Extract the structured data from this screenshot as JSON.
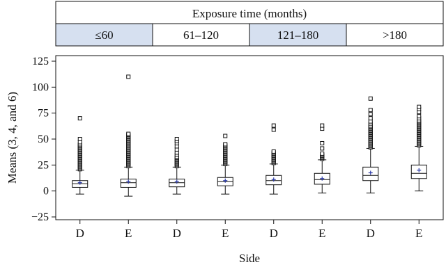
{
  "chart_data": {
    "type": "boxplot",
    "header": {
      "title": "Exposure time (months)",
      "groups": [
        {
          "label": "≤60",
          "highlight": true
        },
        {
          "label": "61–120",
          "highlight": false
        },
        {
          "label": "121–180",
          "highlight": true
        },
        {
          "label": ">180",
          "highlight": false
        }
      ]
    },
    "xlabel": "Side",
    "ylabel": "Means (3, 4, and 6)",
    "ylim": [
      -25,
      125
    ],
    "yticks": [
      -25,
      0,
      25,
      50,
      75,
      100,
      125
    ],
    "colors": {
      "header_highlight": "#d6e0f0",
      "mean_marker": "#2b3aa8",
      "box_stroke": "#111111"
    },
    "boxes": [
      {
        "category": "D",
        "group": "≤60",
        "whisker_low": -3,
        "q1": 3.5,
        "median": 7,
        "q3": 10,
        "whisker_high": 20,
        "mean": 8,
        "outliers": [
          21,
          22,
          23,
          24,
          25,
          26,
          27,
          28,
          29,
          30,
          31,
          32,
          33,
          34,
          35,
          36,
          37,
          38,
          39,
          40,
          41,
          42,
          43,
          44,
          45,
          47,
          50,
          70
        ]
      },
      {
        "category": "E",
        "group": "≤60",
        "whisker_low": -5,
        "q1": 3.5,
        "median": 8,
        "q3": 11.5,
        "whisker_high": 23,
        "mean": 9,
        "outliers": [
          24,
          25,
          26,
          27,
          28,
          29,
          30,
          31,
          32,
          33,
          34,
          35,
          36,
          37,
          38,
          39,
          40,
          41,
          42,
          43,
          44,
          45,
          46,
          47,
          48,
          49,
          50,
          51,
          52,
          53,
          54,
          55,
          110
        ]
      },
      {
        "category": "D",
        "group": "61–120",
        "whisker_low": -3,
        "q1": 4,
        "median": 8,
        "q3": 11.5,
        "whisker_high": 23,
        "mean": 9,
        "outliers": [
          24,
          25,
          26,
          27,
          28,
          29,
          30,
          31,
          32,
          33,
          35,
          37,
          40,
          43,
          46,
          48,
          50
        ]
      },
      {
        "category": "E",
        "group": "61–120",
        "whisker_low": -3,
        "q1": 5,
        "median": 9,
        "q3": 13,
        "whisker_high": 25,
        "mean": 10,
        "outliers": [
          26,
          27,
          28,
          29,
          30,
          31,
          32,
          33,
          34,
          35,
          36,
          37,
          38,
          39,
          40,
          41,
          42,
          43,
          44,
          45,
          53
        ]
      },
      {
        "category": "D",
        "group": "121–180",
        "whisker_low": -3,
        "q1": 6,
        "median": 10,
        "q3": 15,
        "whisker_high": 26,
        "mean": 11,
        "outliers": [
          27,
          28,
          29,
          30,
          31,
          32,
          33,
          34,
          35,
          36,
          37,
          38,
          59,
          63
        ]
      },
      {
        "category": "E",
        "group": "121–180",
        "whisker_low": -2,
        "q1": 6.5,
        "median": 11,
        "q3": 17,
        "whisker_high": 30,
        "mean": 12,
        "outliers": [
          31,
          32,
          33,
          34,
          35,
          36,
          41,
          46,
          60,
          63
        ]
      },
      {
        "category": "D",
        "group": ">180",
        "whisker_low": -2,
        "q1": 10,
        "median": 15,
        "q3": 23,
        "whisker_high": 41,
        "mean": 17.5,
        "outliers": [
          42,
          43,
          44,
          45,
          46,
          47,
          48,
          49,
          50,
          51,
          52,
          53,
          54,
          55,
          56,
          57,
          58,
          59,
          60,
          61,
          62,
          63,
          65,
          67,
          70,
          74,
          78,
          89
        ]
      },
      {
        "category": "E",
        "group": ">180",
        "whisker_low": 0,
        "q1": 12,
        "median": 17,
        "q3": 25,
        "whisker_high": 43,
        "mean": 20,
        "outliers": [
          44,
          45,
          46,
          47,
          48,
          49,
          50,
          51,
          52,
          53,
          54,
          55,
          56,
          57,
          58,
          59,
          60,
          61,
          62,
          63,
          64,
          65,
          66,
          67,
          68,
          70,
          72,
          76,
          79,
          81
        ]
      }
    ]
  }
}
